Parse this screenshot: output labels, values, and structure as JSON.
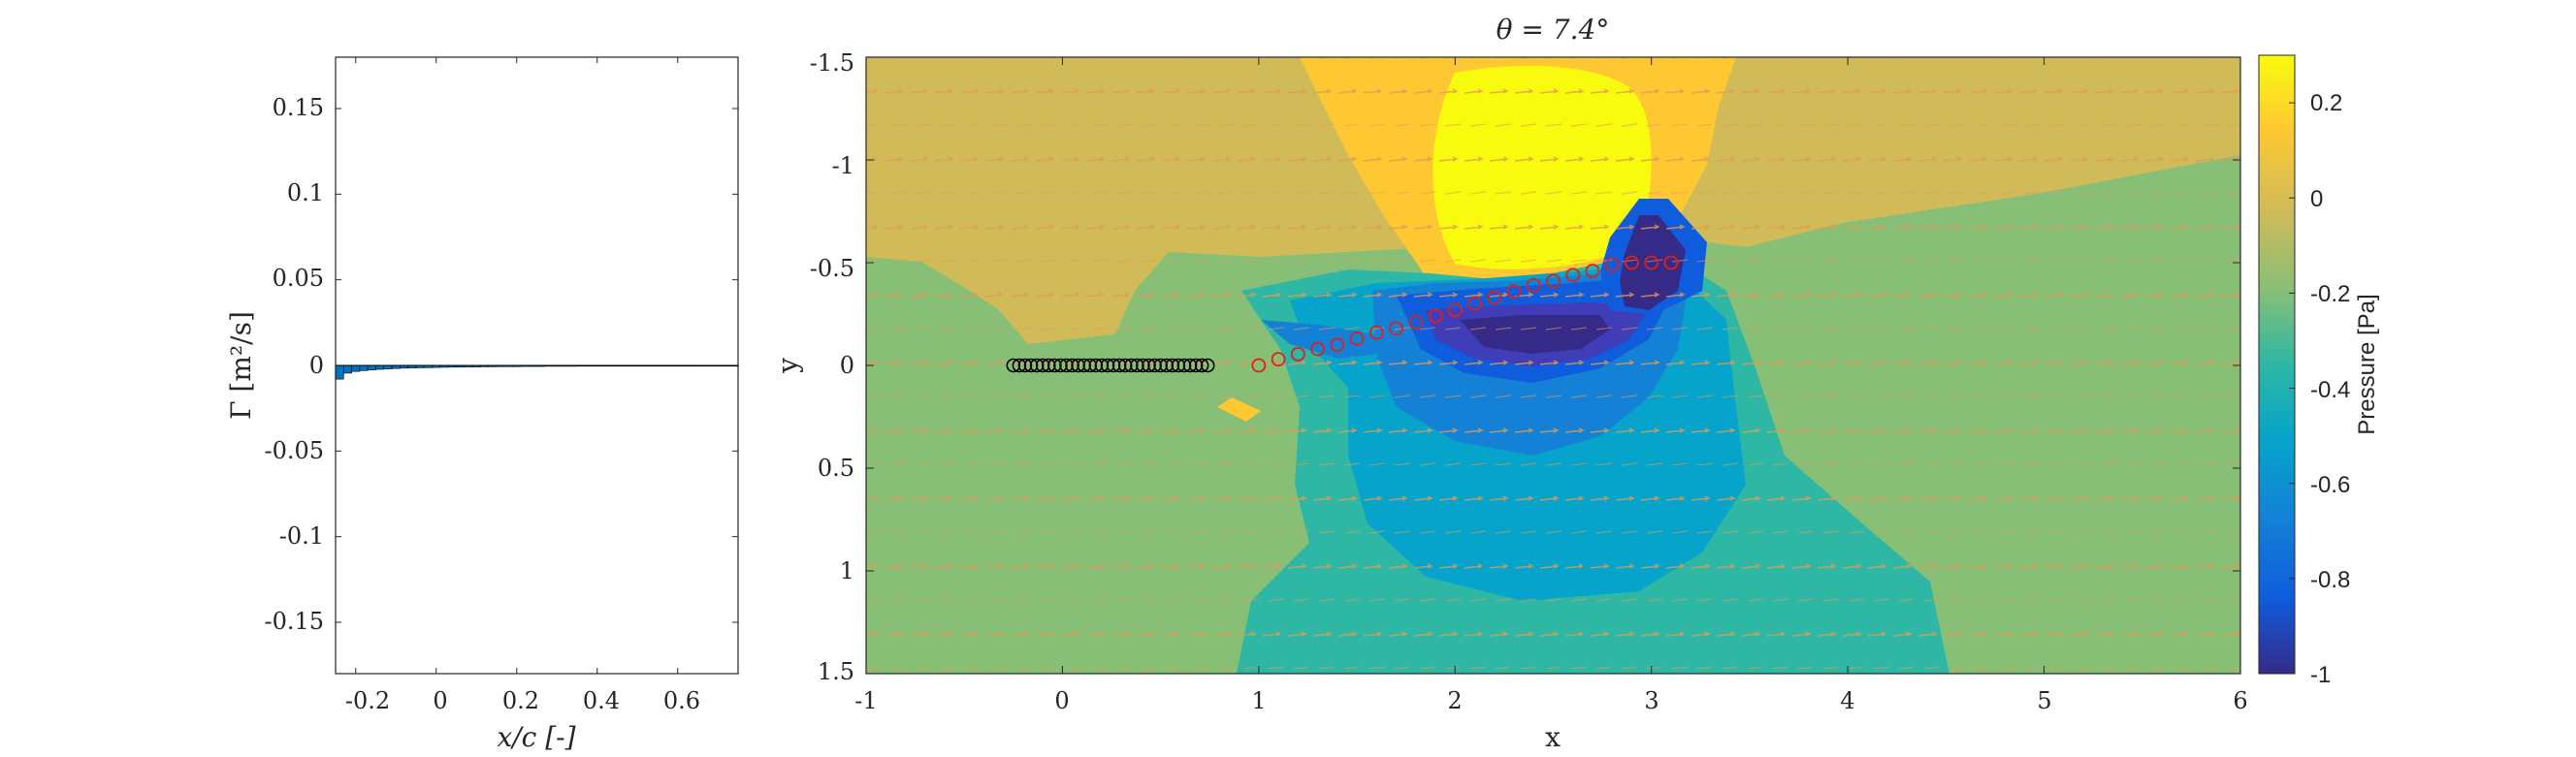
{
  "chart_data": [
    {
      "type": "bar",
      "xlabel": "x/c [-]",
      "ylabel": "Γ [m²/s]",
      "xlim": [
        -0.25,
        0.75
      ],
      "ylim": [
        -0.18,
        0.18
      ],
      "xticks": [
        "-0.2",
        "0",
        "0.2",
        "0.4",
        "0.6"
      ],
      "yticks": [
        "0.15",
        "0.1",
        "0.05",
        "0",
        "-0.05",
        "-0.1",
        "-0.15"
      ],
      "bar_color": "#0072BD",
      "x": [
        -0.24,
        -0.22,
        -0.2,
        -0.18,
        -0.16,
        -0.14,
        -0.12,
        -0.1,
        -0.08,
        -0.06,
        -0.04,
        -0.02,
        0.0,
        0.02,
        0.04,
        0.06,
        0.08,
        0.1,
        0.12,
        0.14,
        0.16,
        0.18,
        0.2,
        0.22,
        0.24,
        0.26,
        0.28,
        0.3,
        0.32,
        0.34,
        0.36,
        0.38,
        0.4,
        0.42,
        0.44,
        0.46,
        0.48,
        0.5,
        0.52,
        0.54,
        0.56,
        0.58,
        0.6,
        0.62,
        0.64,
        0.66,
        0.68,
        0.7,
        0.72,
        0.74
      ],
      "values": [
        -0.008,
        -0.0045,
        -0.0035,
        -0.003,
        -0.0026,
        -0.0023,
        -0.002,
        -0.0018,
        -0.0016,
        -0.0015,
        -0.0014,
        -0.0013,
        -0.0012,
        -0.0011,
        -0.001,
        -0.001,
        -0.0009,
        -0.0009,
        -0.0008,
        -0.0008,
        -0.0007,
        -0.0007,
        -0.0007,
        -0.0006,
        -0.0006,
        -0.0006,
        -0.0005,
        -0.0005,
        -0.0005,
        -0.0005,
        -0.0004,
        -0.0004,
        -0.0004,
        -0.0004,
        -0.0004,
        -0.0003,
        -0.0003,
        -0.0003,
        -0.0003,
        -0.0003,
        -0.0003,
        -0.0002,
        -0.0002,
        -0.0002,
        -0.0002,
        -0.0002,
        -0.0002,
        -0.0001,
        -0.0001,
        -0.0001
      ]
    },
    {
      "type": "heatmap",
      "title": "θ = 7.4°",
      "xlabel": "x",
      "ylabel": "y",
      "xlim": [
        -1,
        6
      ],
      "ylim": [
        -1.5,
        1.5
      ],
      "y_axis_reversed": true,
      "xticks": [
        "-1",
        "0",
        "1",
        "2",
        "3",
        "4",
        "5",
        "6"
      ],
      "yticks": [
        "-1.5",
        "-1",
        "-0.5",
        "0",
        "0.5",
        "1",
        "1.5"
      ],
      "colorbar": {
        "label": "Pressure [Pa]",
        "range": [
          -1,
          0.3
        ],
        "ticks": [
          "0.2",
          "0",
          "-0.2",
          "-0.4",
          "-0.6",
          "-0.8",
          "-1"
        ],
        "colormap": "parula"
      },
      "plate_markers": {
        "color": "#000000",
        "y": 0,
        "x": [
          -0.25,
          -0.22,
          -0.19,
          -0.16,
          -0.13,
          -0.1,
          -0.07,
          -0.04,
          -0.01,
          0.02,
          0.05,
          0.08,
          0.11,
          0.14,
          0.17,
          0.2,
          0.23,
          0.26,
          0.29,
          0.32,
          0.35,
          0.38,
          0.41,
          0.44,
          0.47,
          0.5,
          0.53,
          0.56,
          0.59,
          0.62,
          0.65,
          0.68,
          0.71,
          0.74
        ]
      },
      "wake_markers": {
        "color": "#E0201B",
        "x": [
          1.0,
          1.1,
          1.2,
          1.3,
          1.4,
          1.5,
          1.6,
          1.7,
          1.8,
          1.9,
          2.0,
          2.1,
          2.2,
          2.3,
          2.4,
          2.5,
          2.6,
          2.7,
          2.8,
          2.9,
          3.0,
          3.1
        ],
        "y": [
          0.0,
          -0.03,
          -0.055,
          -0.08,
          -0.1,
          -0.13,
          -0.16,
          -0.18,
          -0.21,
          -0.24,
          -0.27,
          -0.3,
          -0.33,
          -0.36,
          -0.39,
          -0.41,
          -0.44,
          -0.46,
          -0.49,
          -0.5,
          -0.5,
          -0.5
        ]
      }
    }
  ]
}
